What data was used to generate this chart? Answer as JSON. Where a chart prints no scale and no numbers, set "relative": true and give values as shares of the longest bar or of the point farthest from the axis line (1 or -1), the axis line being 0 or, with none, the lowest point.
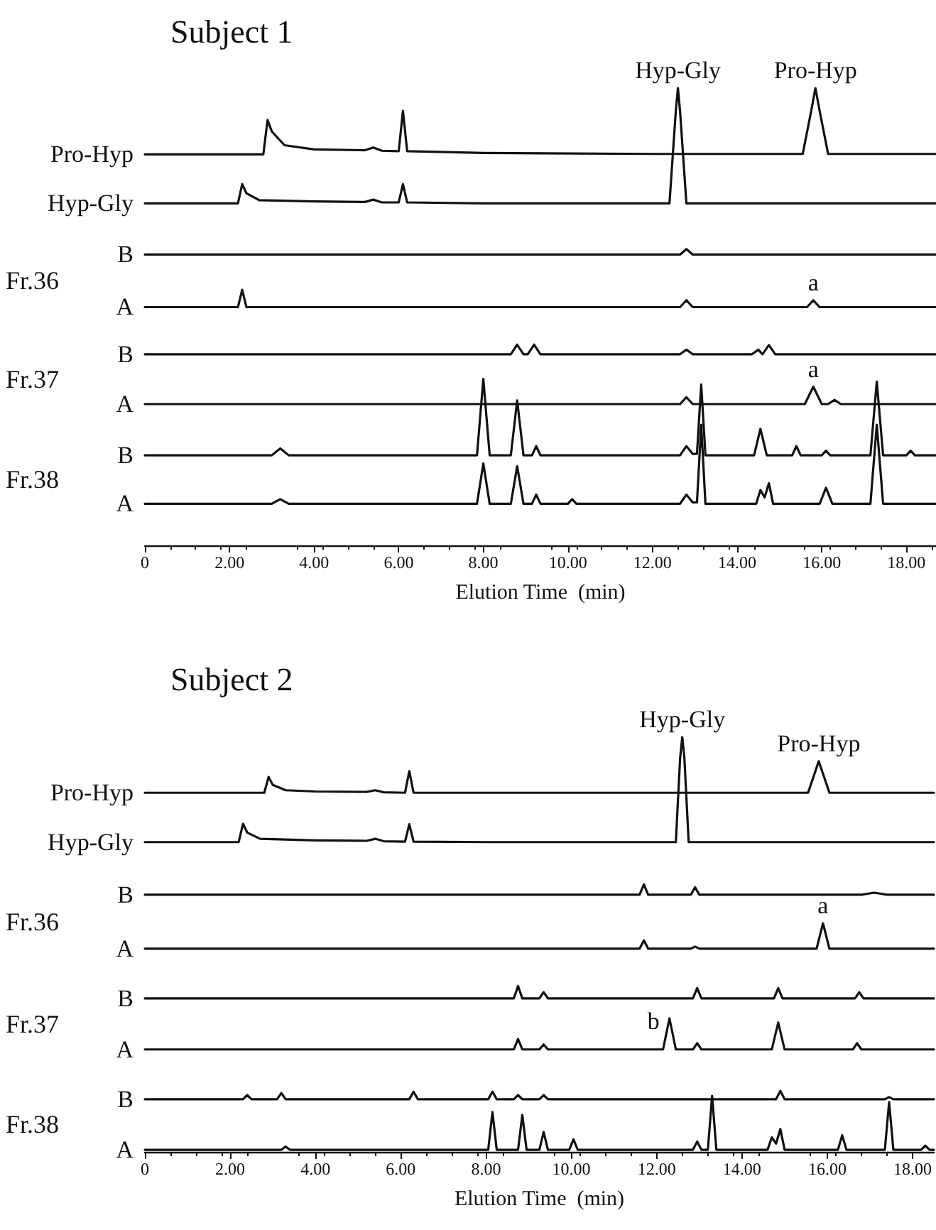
{
  "chart_data": [
    {
      "type": "line",
      "title": "Subject 1",
      "xlabel": "Elution Time  (min)",
      "relative": true,
      "color": "#111111",
      "marker": "none",
      "grid": false,
      "xlim": [
        0,
        18.7
      ],
      "xticks": [
        0,
        {
          "value": 2,
          "label": "2.00"
        },
        {
          "value": 4,
          "label": "4.00"
        },
        {
          "value": 6,
          "label": "6.00"
        },
        {
          "value": 8,
          "label": "8.00"
        },
        {
          "value": 10,
          "label": "10.00"
        },
        {
          "value": 12,
          "label": "12.00"
        },
        {
          "value": 14,
          "label": "14.00"
        },
        {
          "value": 16,
          "label": "16.00"
        },
        {
          "value": 18,
          "label": "18.00"
        }
      ],
      "series": [
        {
          "name": "Pro-Hyp",
          "x": [
            0,
            2.8,
            2.9,
            3.0,
            3.3,
            4,
            5.2,
            5.4,
            5.6,
            6.0,
            6.1,
            6.2,
            8,
            12,
            15.55,
            15.75,
            15.85,
            15.95,
            16.15,
            18.7
          ],
          "values": [
            0.855,
            0.855,
            0.93,
            0.905,
            0.875,
            0.866,
            0.864,
            0.87,
            0.863,
            0.862,
            0.95,
            0.862,
            0.858,
            0.856,
            0.856,
            0.95,
            1,
            0.95,
            0.856,
            0.856
          ]
        },
        {
          "name": "Hyp-Gly",
          "x": [
            0,
            2.2,
            2.3,
            2.4,
            2.7,
            4,
            5.2,
            5.4,
            5.6,
            6.0,
            6.1,
            6.2,
            8,
            12.4,
            12.55,
            12.6,
            12.65,
            12.8,
            18.7
          ],
          "values": [
            0.748,
            0.748,
            0.79,
            0.77,
            0.755,
            0.752,
            0.751,
            0.756,
            0.75,
            0.75,
            0.79,
            0.75,
            0.748,
            0.748,
            0.95,
            1,
            0.95,
            0.748,
            0.748
          ]
        },
        {
          "name": "B",
          "x": [
            0,
            12.65,
            12.8,
            12.95,
            18.7
          ],
          "values": [
            0.636,
            0.636,
            0.648,
            0.636,
            0.636
          ]
        },
        {
          "name": "A",
          "x": [
            0,
            2.2,
            2.3,
            2.4,
            12.65,
            12.8,
            12.95,
            15.65,
            15.8,
            15.95,
            18.7
          ],
          "values": [
            0.521,
            0.521,
            0.559,
            0.521,
            0.521,
            0.536,
            0.521,
            0.521,
            0.536,
            0.521,
            0.521
          ]
        },
        {
          "name": "B",
          "x": [
            0,
            8.65,
            8.8,
            8.95,
            9.05,
            9.2,
            9.35,
            12.65,
            12.8,
            12.95,
            14.35,
            14.5,
            14.6,
            14.75,
            14.9,
            18.7
          ],
          "values": [
            0.418,
            0.418,
            0.439,
            0.418,
            0.418,
            0.439,
            0.418,
            0.418,
            0.428,
            0.418,
            0.418,
            0.428,
            0.418,
            0.438,
            0.418,
            0.418
          ]
        },
        {
          "name": "A",
          "x": [
            0,
            12.65,
            12.8,
            12.95,
            15.6,
            15.8,
            16.0,
            16.15,
            16.3,
            16.45,
            18.7
          ],
          "values": [
            0.309,
            0.309,
            0.324,
            0.309,
            0.309,
            0.347,
            0.309,
            0.309,
            0.318,
            0.309,
            0.309
          ]
        },
        {
          "name": "B",
          "x": [
            0,
            3.0,
            3.2,
            3.4,
            7.85,
            8.0,
            8.15,
            8.65,
            8.8,
            8.95,
            9.15,
            9.25,
            9.35,
            12.65,
            12.8,
            12.95,
            13.05,
            13.15,
            13.25,
            14.4,
            14.55,
            14.7,
            15.3,
            15.4,
            15.5,
            16.0,
            16.1,
            16.2,
            17.15,
            17.3,
            17.45,
            18.0,
            18.1,
            18.2,
            18.7
          ],
          "values": [
            0.197,
            0.197,
            0.212,
            0.197,
            0.197,
            0.364,
            0.197,
            0.197,
            0.317,
            0.197,
            0.197,
            0.217,
            0.197,
            0.197,
            0.217,
            0.2,
            0.2,
            0.352,
            0.197,
            0.197,
            0.255,
            0.197,
            0.197,
            0.217,
            0.197,
            0.197,
            0.207,
            0.197,
            0.197,
            0.358,
            0.197,
            0.197,
            0.207,
            0.197,
            0.197
          ]
        },
        {
          "name": "A",
          "x": [
            0,
            3.0,
            3.2,
            3.4,
            7.85,
            8.0,
            8.15,
            8.65,
            8.8,
            8.95,
            9.15,
            9.25,
            9.35,
            10.0,
            10.1,
            10.2,
            12.65,
            12.8,
            12.95,
            13.05,
            13.15,
            13.25,
            14.45,
            14.55,
            14.65,
            14.75,
            14.85,
            15.95,
            16.1,
            16.25,
            17.15,
            17.3,
            17.45,
            18.7
          ],
          "values": [
            0.091,
            0.091,
            0.101,
            0.091,
            0.091,
            0.179,
            0.091,
            0.091,
            0.173,
            0.091,
            0.091,
            0.111,
            0.091,
            0.091,
            0.101,
            0.091,
            0.091,
            0.111,
            0.094,
            0.094,
            0.264,
            0.091,
            0.091,
            0.121,
            0.105,
            0.136,
            0.091,
            0.091,
            0.126,
            0.091,
            0.091,
            0.264,
            0.091,
            0.091
          ]
        }
      ],
      "annotations": [
        {
          "text": "Hyp-Gly",
          "x": 12.6,
          "y": 1
        },
        {
          "text": "Pro-Hyp",
          "x": 15.85,
          "y": 1
        },
        {
          "text": "a",
          "x": 15.8,
          "y": 0.536
        },
        {
          "text": "a",
          "x": 15.8,
          "y": 0.347
        },
        "Fr.36",
        "Fr.37",
        "Fr.38"
      ]
    },
    {
      "type": "line",
      "title": "Subject 2",
      "xlabel": "Elution Time  (min)",
      "relative": true,
      "color": "#111111",
      "marker": "none",
      "grid": false,
      "xlim": [
        0,
        18.5
      ],
      "xticks": [
        0,
        {
          "value": 2,
          "label": "2.00"
        },
        {
          "value": 4,
          "label": "4.00"
        },
        {
          "value": 6,
          "label": "6.00"
        },
        {
          "value": 8,
          "label": "8.00"
        },
        {
          "value": 10,
          "label": "10.00"
        },
        {
          "value": 12,
          "label": "12.00"
        },
        {
          "value": 14,
          "label": "14.00"
        },
        {
          "value": 16,
          "label": "16.00"
        },
        {
          "value": 18,
          "label": "18.00"
        }
      ],
      "series": [
        {
          "name": "Pro-Hyp",
          "x": [
            0,
            2.8,
            2.9,
            3.0,
            3.3,
            4,
            5.2,
            5.4,
            5.6,
            6.1,
            6.2,
            6.3,
            8,
            15.55,
            15.8,
            16.05,
            18.5
          ],
          "values": [
            0.866,
            0.866,
            0.904,
            0.885,
            0.872,
            0.869,
            0.868,
            0.872,
            0.867,
            0.866,
            0.918,
            0.866,
            0.866,
            0.866,
            0.942,
            0.866,
            0.866
          ]
        },
        {
          "name": "Hyp-Gly",
          "x": [
            0,
            2.2,
            2.3,
            2.4,
            2.7,
            4,
            5.2,
            5.4,
            5.6,
            6.1,
            6.2,
            6.3,
            8,
            12.45,
            12.55,
            12.6,
            12.65,
            12.75,
            18.5
          ],
          "values": [
            0.747,
            0.747,
            0.791,
            0.77,
            0.755,
            0.751,
            0.75,
            0.755,
            0.749,
            0.748,
            0.79,
            0.748,
            0.747,
            0.747,
            0.95,
            1,
            0.95,
            0.747,
            0.747
          ]
        },
        {
          "name": "B",
          "x": [
            0,
            11.6,
            11.7,
            11.8,
            12.8,
            12.9,
            13.0,
            16.8,
            17.1,
            17.4,
            18.5
          ],
          "values": [
            0.62,
            0.62,
            0.645,
            0.62,
            0.62,
            0.638,
            0.62,
            0.62,
            0.625,
            0.62,
            0.62
          ]
        },
        {
          "name": "A",
          "x": [
            0,
            11.6,
            11.7,
            11.8,
            12.8,
            12.9,
            13.0,
            15.75,
            15.9,
            16.05,
            18.5
          ],
          "values": [
            0.49,
            0.49,
            0.51,
            0.49,
            0.49,
            0.495,
            0.49,
            0.49,
            0.551,
            0.49,
            0.49
          ]
        },
        {
          "name": "B",
          "x": [
            0,
            8.65,
            8.75,
            8.85,
            9.25,
            9.35,
            9.45,
            12.85,
            12.95,
            13.05,
            14.75,
            14.85,
            14.95,
            16.65,
            16.75,
            16.85,
            18.5
          ],
          "values": [
            0.37,
            0.37,
            0.4,
            0.37,
            0.37,
            0.385,
            0.37,
            0.37,
            0.395,
            0.37,
            0.37,
            0.395,
            0.37,
            0.37,
            0.385,
            0.37,
            0.37
          ]
        },
        {
          "name": "A",
          "x": [
            0,
            8.65,
            8.75,
            8.85,
            9.25,
            9.35,
            9.45,
            12.15,
            12.3,
            12.45,
            12.85,
            12.95,
            13.05,
            14.7,
            14.85,
            15.0,
            16.6,
            16.7,
            16.8,
            18.5
          ],
          "values": [
            0.247,
            0.247,
            0.272,
            0.247,
            0.247,
            0.259,
            0.247,
            0.247,
            0.322,
            0.247,
            0.247,
            0.262,
            0.247,
            0.247,
            0.312,
            0.247,
            0.247,
            0.262,
            0.247,
            0.247
          ]
        },
        {
          "name": "B",
          "x": [
            0,
            2.3,
            2.4,
            2.5,
            3.1,
            3.2,
            3.3,
            6.2,
            6.3,
            6.4,
            8.05,
            8.15,
            8.25,
            8.65,
            8.75,
            8.85,
            9.25,
            9.35,
            9.45,
            14.8,
            14.9,
            15.0,
            17.35,
            17.45,
            17.55,
            18.5
          ],
          "values": [
            0.127,
            0.127,
            0.137,
            0.127,
            0.127,
            0.142,
            0.127,
            0.127,
            0.145,
            0.127,
            0.127,
            0.145,
            0.127,
            0.127,
            0.137,
            0.127,
            0.127,
            0.137,
            0.127,
            0.127,
            0.147,
            0.127,
            0.127,
            0.132,
            0.127,
            0.127
          ]
        },
        {
          "name": "A",
          "x": [
            0,
            3.2,
            3.3,
            3.4,
            8.05,
            8.15,
            8.25,
            8.75,
            8.85,
            8.95,
            9.25,
            9.35,
            9.45,
            9.95,
            10.05,
            10.15,
            12.85,
            12.95,
            13.05,
            13.2,
            13.3,
            13.4,
            14.6,
            14.7,
            14.8,
            14.9,
            15.0,
            16.25,
            16.35,
            16.45,
            17.35,
            17.45,
            17.55,
            18.2,
            18.3,
            18.4,
            18.5
          ],
          "values": [
            0.005,
            0.005,
            0.013,
            0.005,
            0.005,
            0.096,
            0.005,
            0.005,
            0.089,
            0.005,
            0.005,
            0.048,
            0.005,
            0.005,
            0.03,
            0.005,
            0.005,
            0.025,
            0.005,
            0.005,
            0.135,
            0.005,
            0.005,
            0.035,
            0.02,
            0.055,
            0.005,
            0.005,
            0.04,
            0.005,
            0.005,
            0.12,
            0.005,
            0.005,
            0.015,
            0.005,
            0.005
          ]
        }
      ],
      "annotations": [
        {
          "text": "Hyp-Gly",
          "x": 12.6,
          "y": 1
        },
        {
          "text": "Pro-Hyp",
          "x": 15.8,
          "y": 0.942
        },
        {
          "text": "a",
          "x": 15.9,
          "y": 0.551
        },
        {
          "text": "b",
          "x": 12.3,
          "y": 0.322
        },
        "Fr.36",
        "Fr.37",
        "Fr.38"
      ]
    }
  ]
}
